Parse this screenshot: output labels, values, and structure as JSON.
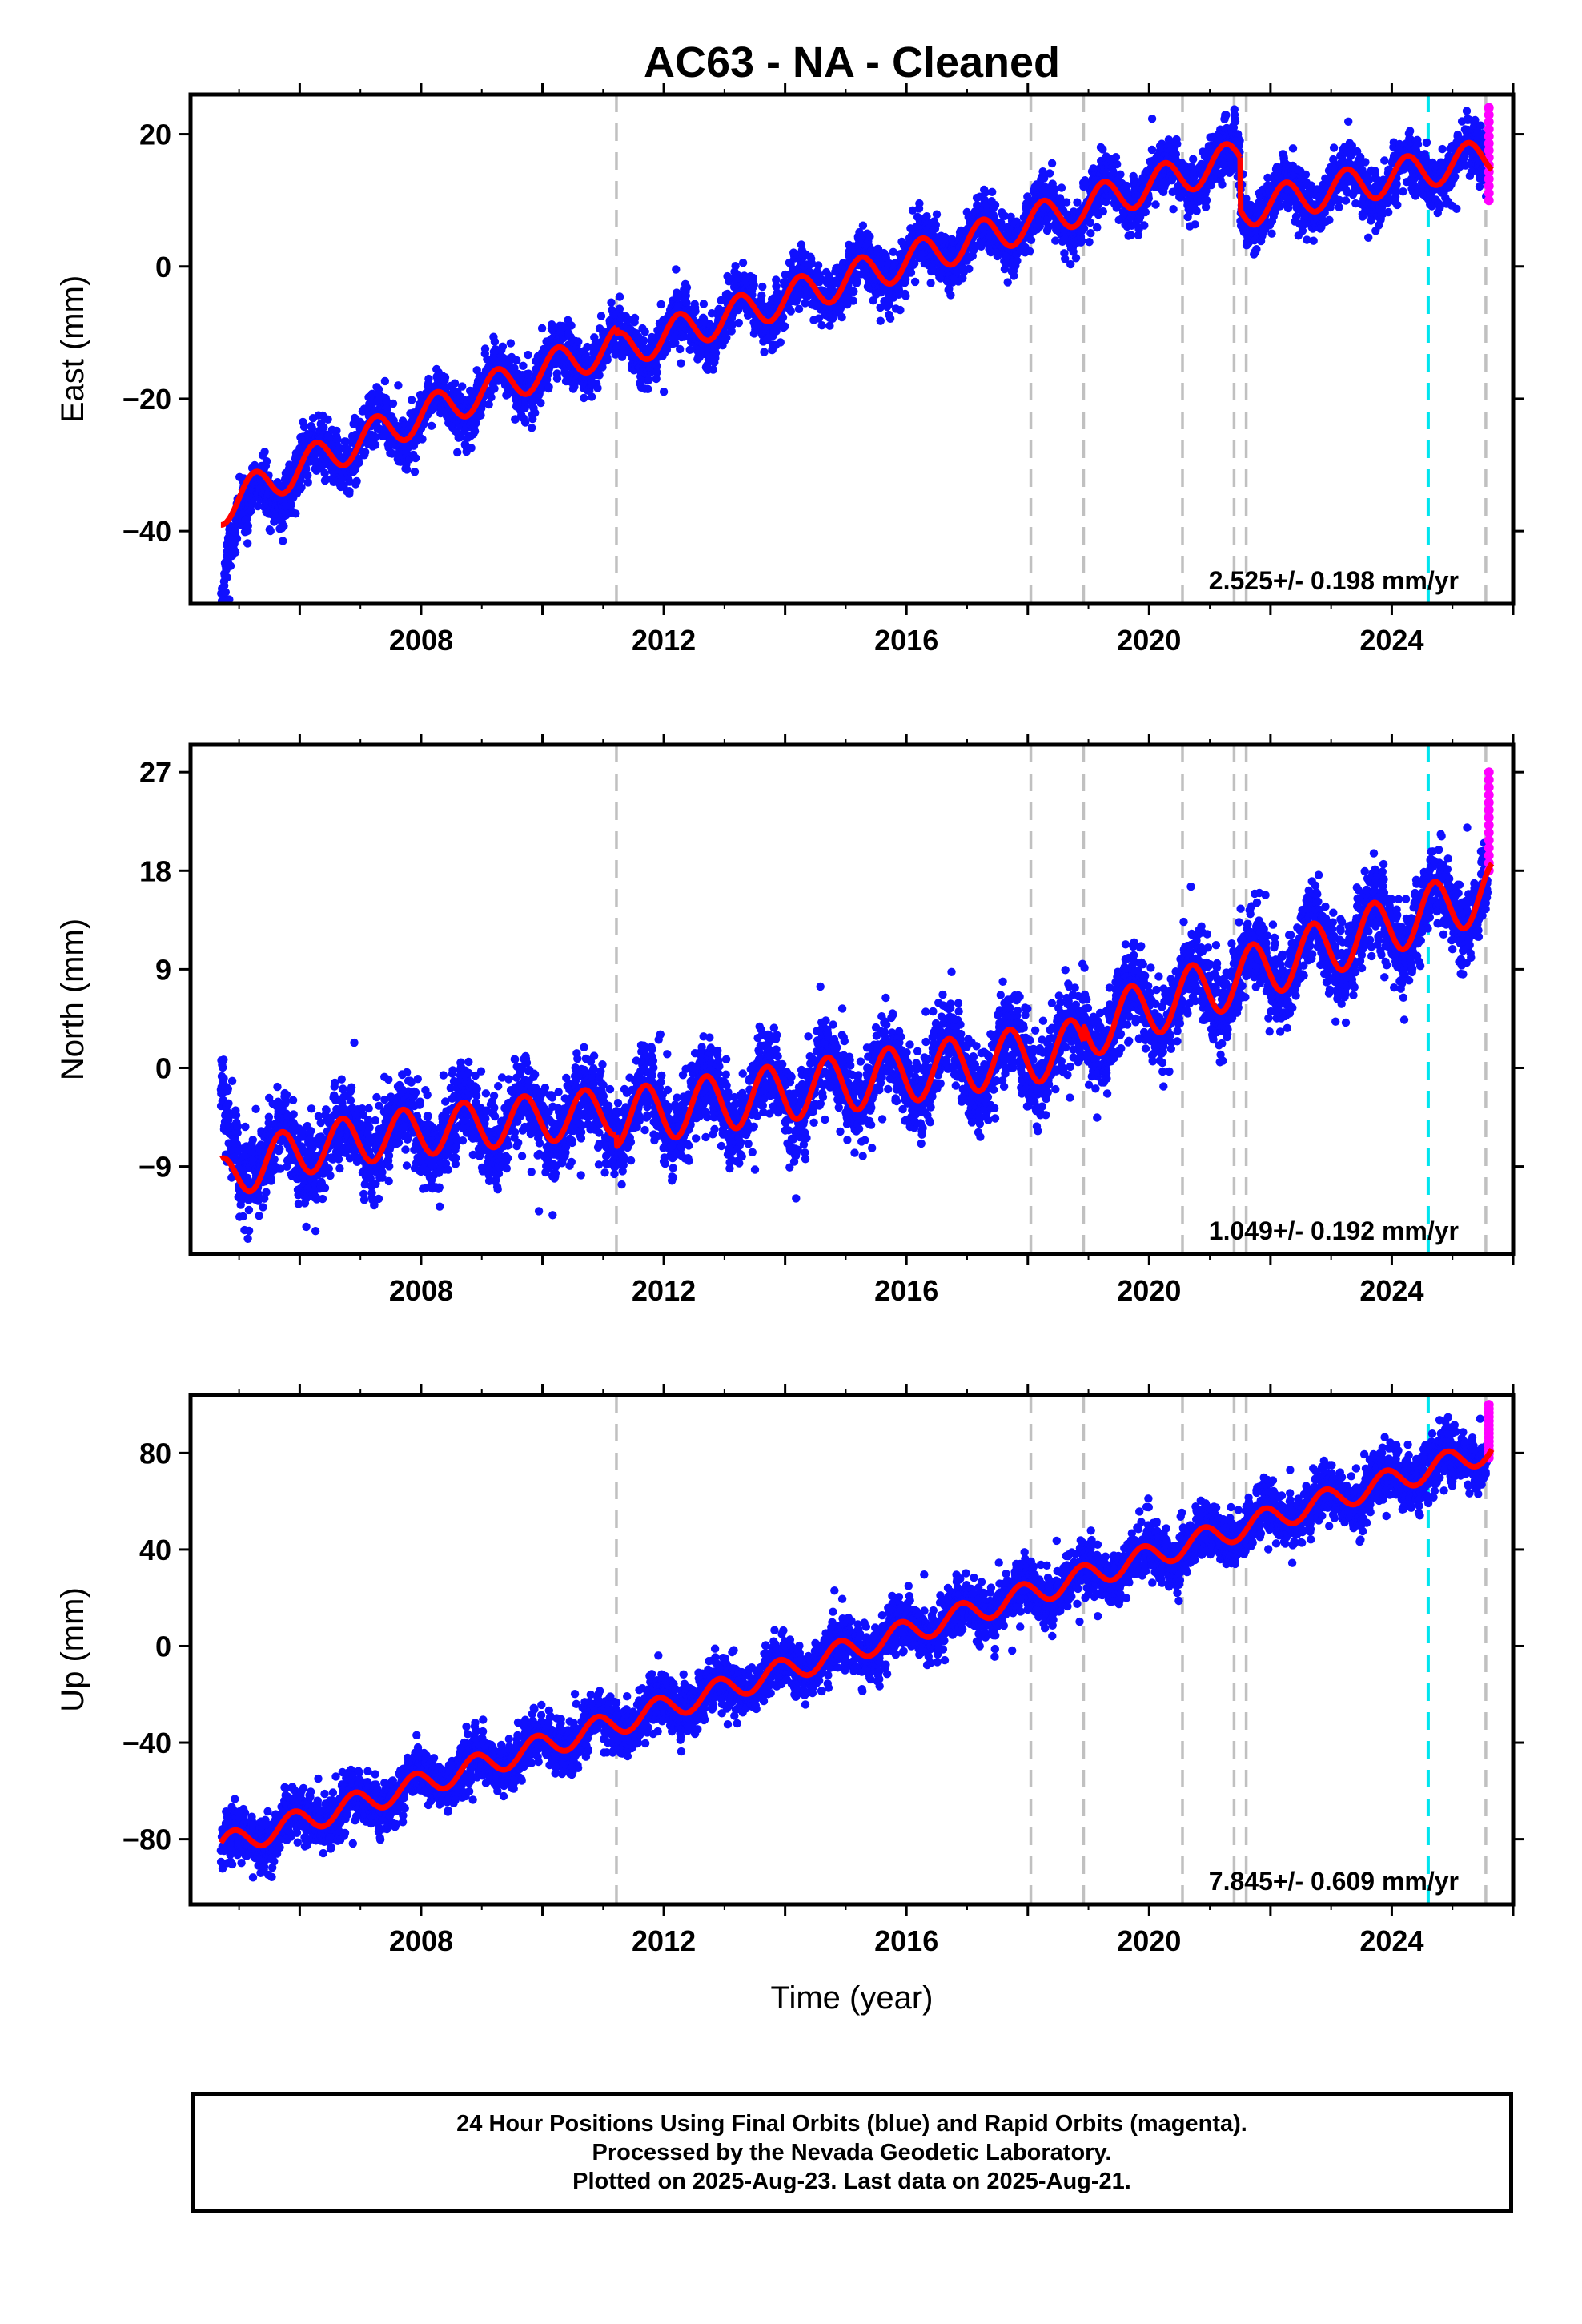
{
  "figure": {
    "title": "AC63  - NA - Cleaned",
    "xlabel": "Time (year)"
  },
  "chart_data": [
    {
      "type": "scatter",
      "ylabel": "East (mm)",
      "xlim": [
        2004.2,
        2026.0
      ],
      "ylim": [
        -51,
        26
      ],
      "xticks": [
        2008,
        2012,
        2016,
        2020,
        2024
      ],
      "yticks": [
        -40,
        -20,
        0,
        20
      ],
      "rate_label": "2.525+/- 0.198 mm/yr",
      "model": {
        "segments": [
          {
            "x_start": 2004.7,
            "x_end": 2011.22,
            "y_base": -30.0,
            "slope": 2.9,
            "decay_amp": -6.5,
            "decay_tau": 3.0,
            "seasonal_amp": 2.7,
            "phase": 0.0
          },
          {
            "x_start": 2011.22,
            "x_end": 2021.5,
            "y_base": -12.8,
            "slope": 2.85,
            "decay_amp": 0,
            "decay_tau": 1,
            "seasonal_amp": 2.7,
            "phase": 0.0
          },
          {
            "x_start": 2021.5,
            "x_end": 2025.65,
            "y_base": 8.5,
            "slope": 2.0,
            "decay_amp": 0,
            "decay_tau": 1,
            "seasonal_amp": 2.7,
            "phase": 0.0
          }
        ]
      },
      "offsets": [
        {
          "x": 2004.7,
          "dy": -16
        },
        {
          "x": 2005.1,
          "dy": -8
        },
        {
          "x": 2005.5,
          "dy": -4
        }
      ],
      "scatter_sigma": 1.8,
      "outlier_rate": 0.015,
      "rapid": {
        "x": 2025.6,
        "y_min": 10,
        "y_max": 24
      },
      "vlines_gray": [
        2011.22,
        2018.05,
        2018.92,
        2020.55,
        2021.4,
        2021.6,
        2025.55
      ],
      "vline_cyan": 2024.6
    },
    {
      "type": "scatter",
      "ylabel": "North (mm)",
      "xlim": [
        2004.2,
        2026.0
      ],
      "ylim": [
        -17,
        29.5
      ],
      "xticks": [
        2008,
        2012,
        2016,
        2020,
        2024
      ],
      "yticks": [
        -9,
        0,
        9,
        18,
        27
      ],
      "rate_label": "1.049+/- 0.192 mm/yr",
      "model": {
        "segments": [
          {
            "x_start": 2004.7,
            "x_end": 2011.22,
            "y_base": -7.5,
            "slope": 0.55,
            "decay_amp": -3,
            "decay_tau": 1.0,
            "seasonal_amp": 2.2,
            "phase": 0.55
          },
          {
            "x_start": 2011.22,
            "x_end": 2018.92,
            "y_base": -4.6,
            "slope": 0.85,
            "decay_amp": 0,
            "decay_tau": 1,
            "seasonal_amp": 2.6,
            "phase": 0.55
          },
          {
            "x_start": 2018.92,
            "x_end": 2025.65,
            "y_base": 3.4,
            "slope": 1.9,
            "decay_amp": 0,
            "decay_tau": 1,
            "seasonal_amp": 2.6,
            "phase": 0.55
          }
        ]
      },
      "offsets": [
        {
          "x": 2004.7,
          "dy": 10
        },
        {
          "x": 2005.1,
          "dy": 4
        }
      ],
      "scatter_sigma": 1.7,
      "outlier_rate": 0.02,
      "rapid": {
        "x": 2025.6,
        "y_min": 18,
        "y_max": 27
      },
      "vlines_gray": [
        2011.22,
        2018.05,
        2018.92,
        2020.55,
        2021.4,
        2021.6,
        2025.55
      ],
      "vline_cyan": 2024.6
    },
    {
      "type": "scatter",
      "ylabel": "Up (mm)",
      "xlim": [
        2004.2,
        2026.0
      ],
      "ylim": [
        -107,
        104
      ],
      "xticks": [
        2008,
        2012,
        2016,
        2020,
        2024
      ],
      "yticks": [
        -80,
        -40,
        0,
        40,
        80
      ],
      "rate_label": "7.845+/- 0.609 mm/yr",
      "model": {
        "segments": [
          {
            "x_start": 2004.7,
            "x_end": 2025.65,
            "y_base": -83.0,
            "slope": 7.85,
            "decay_amp": 0,
            "decay_tau": 1,
            "seasonal_amp": 5.0,
            "phase": 0.35
          }
        ]
      },
      "offsets": [],
      "scatter_sigma": 5.0,
      "outlier_rate": 0.012,
      "rapid": {
        "x": 2025.6,
        "y_min": 78,
        "y_max": 100
      },
      "vlines_gray": [
        2011.22,
        2018.05,
        2018.92,
        2020.55,
        2021.4,
        2021.6,
        2025.55
      ],
      "vline_cyan": 2024.6
    }
  ],
  "colors": {
    "final_orbits": "#1010ff",
    "rapid_orbits": "#ff00ff",
    "model": "#ff0000",
    "equipment_change": "#c0c0c0",
    "earthquake": "#00e5ee",
    "frame": "#000000"
  },
  "footer": {
    "line1": "24 Hour Positions Using Final Orbits (blue) and Rapid Orbits (magenta).",
    "line2": "Processed by the Nevada Geodetic Laboratory.",
    "line3": "Plotted on 2025-Aug-23. Last data on 2025-Aug-21."
  }
}
